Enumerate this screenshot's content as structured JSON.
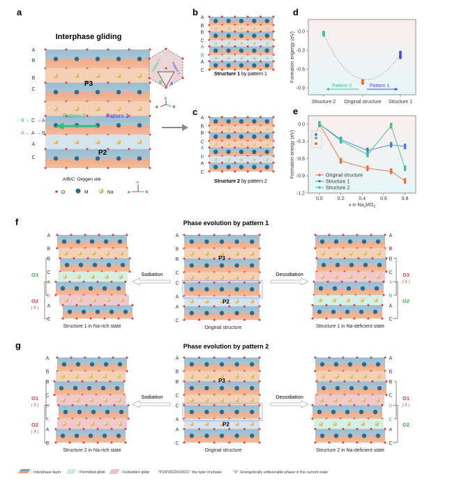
{
  "panel_labels": {
    "a": "a",
    "b": "b",
    "c": "c",
    "d": "d",
    "e": "e",
    "f": "f",
    "g": "g"
  },
  "panel_a": {
    "title": "Interphase gliding",
    "letters": [
      "A",
      "B",
      "B",
      "C",
      "A",
      "C"
    ],
    "phase_top": "P3",
    "phase_bottom": "P2",
    "pattern1": "Pattern 1",
    "pattern2": "Pattern 2",
    "glide_top": {
      "left": "B",
      "mid": "C",
      "right": "A"
    },
    "glide_bot": {
      "left": "A",
      "mid": "A",
      "right": "B"
    },
    "site_note": "A/B/C: Oxygen site",
    "legend": {
      "o": "O",
      "m": "M",
      "na": "Na"
    },
    "axes": {
      "a": "a",
      "b": "b",
      "c": "c"
    },
    "inset": {
      "pattern1": "Pattern 1",
      "pattern2": "Pattern 2",
      "A": "A",
      "B": "B"
    }
  },
  "panel_b": {
    "letters": [
      "A",
      "B",
      "B",
      "C",
      "A",
      "B",
      "A",
      "C"
    ],
    "caption_bold": "Structure 1",
    "caption_rest": " by pattern 1"
  },
  "panel_c": {
    "letters": [
      "A",
      "B",
      "B",
      "C",
      "A",
      "B",
      "A",
      "C"
    ],
    "caption_bold": "Structure 2",
    "caption_rest": " by pattern 2"
  },
  "panel_f": {
    "title": "Phase evolution by pattern 1",
    "left": {
      "letters": [
        "A",
        "B",
        "B",
        "C",
        "A",
        "B",
        "A",
        "C"
      ],
      "caption": "Structure 1 in Na-rich state",
      "upper_phase": "O3",
      "lower_phase": "O2",
      "lower_mark": "( X )"
    },
    "center": {
      "letters": [
        "A",
        "B",
        "B",
        "C",
        "C",
        "A",
        "A",
        "C"
      ],
      "caption": "Original structure",
      "p3": "P3",
      "p2": "P2"
    },
    "right": {
      "letters": [
        "A",
        "B",
        "B",
        "C",
        "A",
        "B",
        "A",
        "C"
      ],
      "caption": "Structure 1 in Na-deficient state",
      "upper_phase": "O3",
      "upper_mark": "( X )",
      "lower_phase": "O2"
    },
    "sodiation": "Sodiation",
    "desodiation": "Desodiation"
  },
  "panel_g": {
    "title": "Phase evolution by pattern 2",
    "left": {
      "letters": [
        "A",
        "B",
        "B",
        "C",
        "B",
        "C",
        "A",
        "C"
      ],
      "caption": "Structure 2 in Na-rich state",
      "upper_phase": "O1",
      "upper_mark": "( X )",
      "lower_phase": "O2",
      "lower_mark": "( X )"
    },
    "center": {
      "letters": [
        "A",
        "B",
        "B",
        "C",
        "C",
        "A",
        "A",
        "C"
      ],
      "caption": "Original structure",
      "p3": "P3",
      "p2": "P2"
    },
    "right": {
      "letters": [
        "A",
        "B",
        "B",
        "C",
        "B",
        "C",
        "A",
        "C"
      ],
      "caption": "Structure 2 in Na-deficient state",
      "upper_phase": "O1",
      "upper_mark": "( X )",
      "lower_phase": "O2"
    },
    "sodiation": "Sodiation",
    "desodiation": "Desodiation"
  },
  "legend": {
    "interphase": ": Interphase layer",
    "permitted": ": Permitted glide",
    "forbidden": ": Forbidden glide",
    "phase_note": "\"P2/P3/O2/O3/O1\": the type of phase",
    "x_note": "\"X\": Energetically unfavorable phase in the current state"
  },
  "colors": {
    "oxygen": "#e03a3a",
    "metal": "#2f6a8c",
    "sodium": "#e8c46a",
    "p3": "#f2c9a8",
    "p2": "#cfe0ea",
    "permitted": "#cdeee2",
    "forbidden": "#efc0c4",
    "orig": "#f06a3a",
    "s1": "#3a7fe0",
    "s2": "#3fbf95",
    "pattern1": "#3a3ae0",
    "pattern2": "#2fbf7f"
  },
  "chart_data": [
    {
      "type": "scatter",
      "ylabel": "Formation engergy (eV)",
      "categories": [
        "Structure 2",
        "Original structure",
        "Structure 1"
      ],
      "values": [
        [
          -0.01,
          -0.03,
          -0.05,
          -0.06
        ],
        [
          -0.78,
          -0.8,
          -0.82,
          -0.83
        ],
        [
          -0.33,
          -0.36,
          -0.39,
          -0.42
        ]
      ],
      "yticks": [
        "0.0",
        "-0.3",
        "-0.6",
        "-0.9"
      ],
      "ytick_values": [
        0,
        -0.3,
        -0.6,
        -0.9
      ],
      "ylim": [
        -1.01,
        0.19
      ],
      "annotations": {
        "pattern2": "Pattern 2",
        "pattern1": "Pattern 1"
      }
    },
    {
      "type": "line",
      "xlabel_italic": "x",
      "xlabel_rest": " in Na",
      "xlabel_sub": "x",
      "xlabel_end": "MO",
      "xlabel_sub2": "2",
      "ylabel": "Formation energy (eV)",
      "x": [
        0,
        0.2,
        0.45,
        0.67,
        0.8
      ],
      "series": [
        {
          "name": "Original structure",
          "values": [
            0,
            -0.64,
            -0.77,
            -0.82,
            -0.99
          ]
        },
        {
          "name": "Structure 1",
          "values": [
            0,
            -0.27,
            -0.46,
            -0.36,
            -0.39
          ]
        },
        {
          "name": "Structure 2",
          "values": [
            0,
            -0.29,
            -0.53,
            -0.03,
            -0.77
          ]
        }
      ],
      "xticks": [
        "0.0",
        "0.2",
        "0.4",
        "0.6",
        "0.8"
      ],
      "xtick_values": [
        0,
        0.2,
        0.4,
        0.6,
        0.8
      ],
      "yticks": [
        "0.0",
        "-0.3",
        "-0.6",
        "-0.9",
        "-1.2"
      ],
      "ytick_values": [
        0,
        -0.3,
        -0.6,
        -0.9,
        -1.2
      ],
      "xlim": [
        -0.104,
        0.9
      ],
      "ylim": [
        -1.2,
        0.145
      ],
      "legend_position": "bottom-left"
    }
  ]
}
